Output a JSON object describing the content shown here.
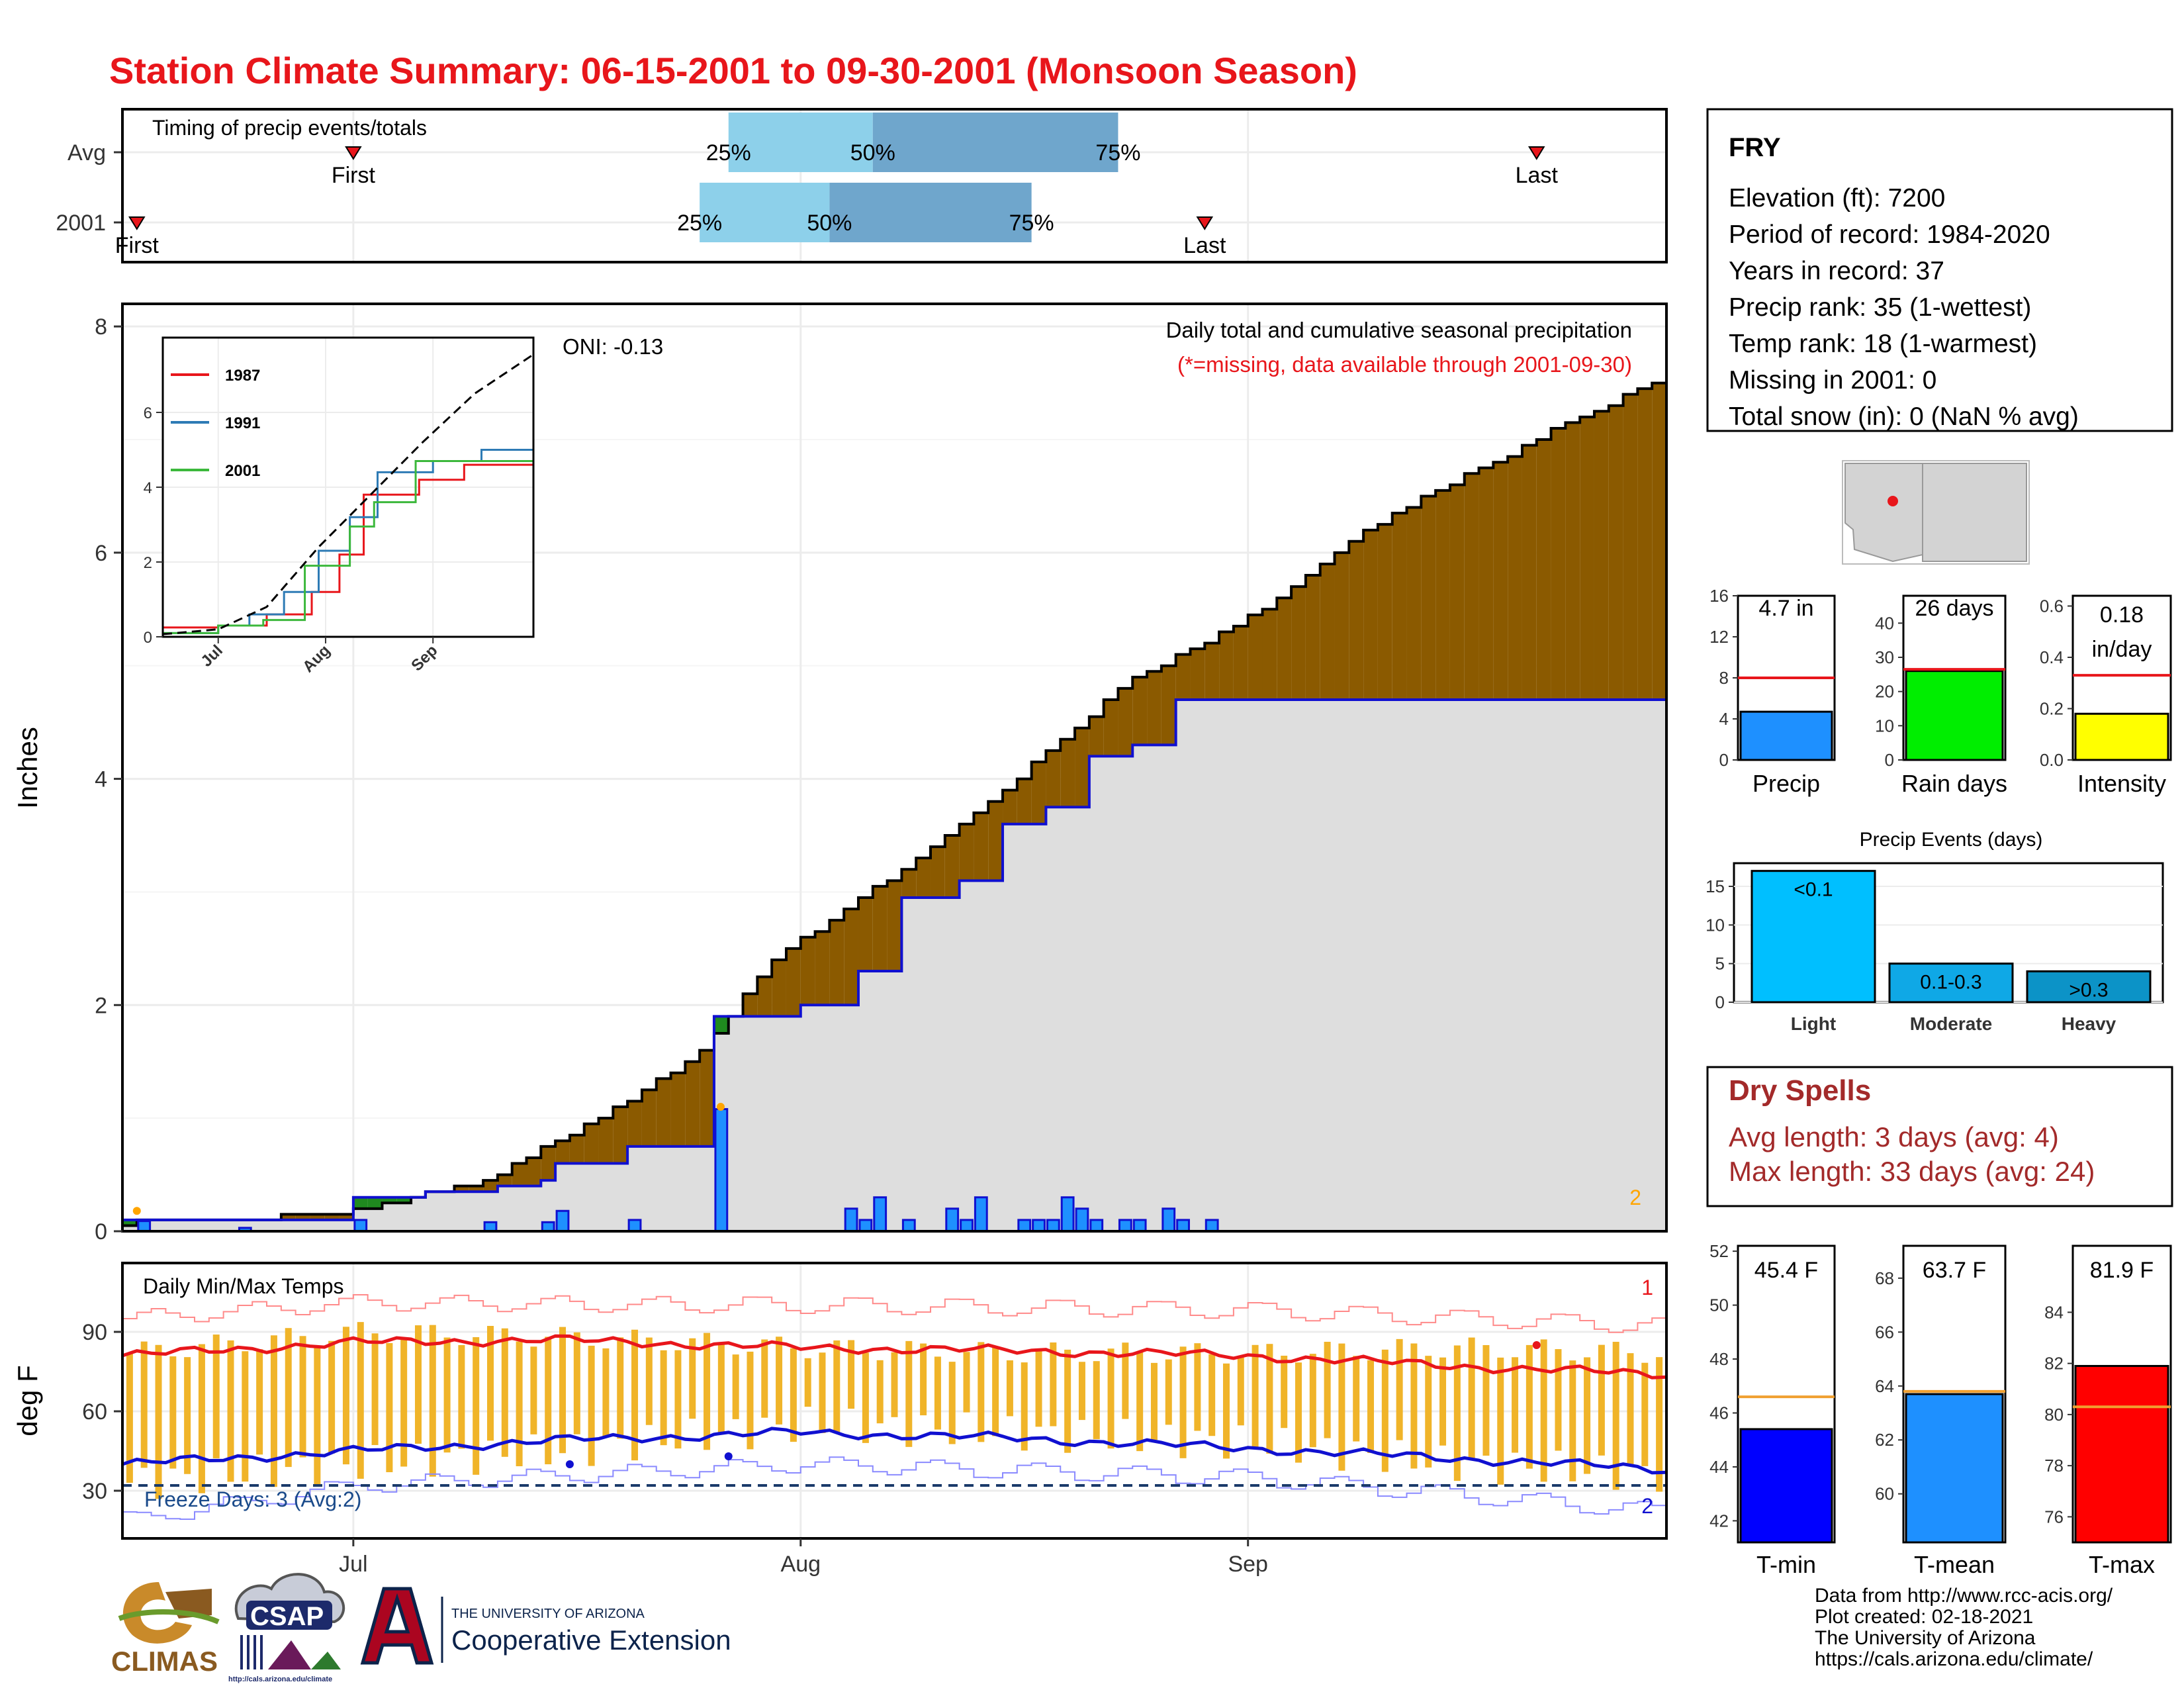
{
  "page_title": "Station Climate Summary: 06-15-2001 to 09-30-2001 (Monsoon Season)",
  "colors": {
    "title_red": "#e8161b",
    "brown": "#8b5a00",
    "light_blue": "#8dd0ea",
    "mid_blue": "#6fa6cc",
    "dry_red": "#a32a2a"
  },
  "timing": {
    "title": "Timing of precip events/totals",
    "rows": [
      {
        "label": "Avg",
        "first_date": "2001-07-01",
        "last_date": "2001-09-21",
        "p25_date": "2001-07-27",
        "p50_date": "2001-08-06",
        "p75_date": "2001-08-23",
        "first_label": "First",
        "last_label": "Last",
        "p25_label": "25%",
        "p50_label": "50%",
        "p75_label": "75%"
      },
      {
        "label": "2001",
        "first_date": "2001-06-16",
        "last_date": "2001-08-29",
        "p25_date": "2001-07-25",
        "p50_date": "2001-08-03",
        "p75_date": "2001-08-17",
        "first_label": "First",
        "last_label": "Last",
        "p25_label": "25%",
        "p50_label": "50%",
        "p75_label": "75%"
      }
    ]
  },
  "precip_chart": {
    "ylabel": "Inches",
    "note_title": "Daily total and cumulative seasonal precipitation",
    "note_missing": "(*=missing, data available through 2001-09-30)",
    "oni": "ONI: -0.13",
    "corner_count": "2",
    "yticks": [
      "0",
      "2",
      "4",
      "6",
      "8"
    ]
  },
  "inset": {
    "yticks": [
      "0",
      "2",
      "4",
      "6"
    ],
    "xticks": [
      "Jul",
      "Aug",
      "Sep"
    ],
    "legend": [
      {
        "name": "1987",
        "color": "#e8161b"
      },
      {
        "name": "1991",
        "color": "#2e7bb5"
      },
      {
        "name": "2001",
        "color": "#3cb83c"
      }
    ]
  },
  "temp_chart": {
    "ylabel": "deg F",
    "title": "Daily Min/Max Temps",
    "freeze_text": "Freeze Days: 3 (Avg:2)",
    "count_top": "1",
    "count_bottom": "2",
    "yticks": [
      "30",
      "60",
      "90"
    ],
    "xticks": [
      "Jul",
      "Aug",
      "Sep"
    ]
  },
  "station": {
    "name": "FRY",
    "lines": [
      "Elevation (ft): 7200",
      "Period of record: 1984-2020",
      "Years in record: 37",
      "Precip rank: 35 (1-wettest)",
      "Temp rank: 18 (1-warmest)",
      "Missing in 2001: 0",
      "Total snow (in): 0 (NaN % avg)"
    ]
  },
  "mini_bars": [
    {
      "label": "Precip",
      "value_text": "4.7 in",
      "yticks": [
        "0",
        "4",
        "8",
        "12",
        "16"
      ],
      "ymax": 16,
      "value": 4.7,
      "avg": 8.0,
      "avg_color": "#e8161b",
      "color": "#1e90ff"
    },
    {
      "label": "Rain days",
      "value_text": "26 days",
      "yticks": [
        "0",
        "10",
        "20",
        "30",
        "40"
      ],
      "ymax": 48,
      "value": 26,
      "avg": 26.5,
      "avg_color": "#e8161b",
      "color": "#00ee00"
    },
    {
      "label": "Intensity",
      "value_text": "0.18 in/day",
      "value_line1": "0.18",
      "value_line2": "in/day",
      "yticks": [
        "0.0",
        "0.2",
        "0.4",
        "0.6"
      ],
      "ymax": 0.64,
      "value": 0.18,
      "avg": 0.33,
      "avg_color": "#e8161b",
      "color": "#ffff00"
    }
  ],
  "precip_events": {
    "title": "Precip Events (days)",
    "yticks": [
      "0",
      "5",
      "10",
      "15"
    ],
    "ymax": 18,
    "bars": [
      {
        "category": "Light",
        "label": "<0.1",
        "value": 17,
        "color": "#00bfff"
      },
      {
        "category": "Moderate",
        "label": "0.1-0.3",
        "value": 5,
        "color": "#0fa8e6"
      },
      {
        "category": "Heavy",
        "label": ">0.3",
        "value": 4,
        "color": "#0c93c7"
      }
    ]
  },
  "dry_spells": {
    "title": "Dry Spells",
    "avg_line": "Avg length: 3 days (avg: 4)",
    "max_line": "Max length: 33 days (avg: 24)"
  },
  "temp_bars": [
    {
      "label": "T-min",
      "value_text": "45.4 F",
      "yticks": [
        "42",
        "44",
        "46",
        "48",
        "50",
        "52"
      ],
      "ymin": 41.2,
      "ymax": 52.2,
      "value": 45.4,
      "avg": 46.6,
      "color": "#0000ff"
    },
    {
      "label": "T-mean",
      "value_text": "63.7 F",
      "yticks": [
        "60",
        "62",
        "64",
        "66",
        "68"
      ],
      "ymin": 58.2,
      "ymax": 69.2,
      "value": 63.7,
      "avg": 63.8,
      "color": "#1e90ff"
    },
    {
      "label": "T-max",
      "value_text": "81.9 F",
      "yticks": [
        "76",
        "78",
        "80",
        "82",
        "84"
      ],
      "ymin": 75.0,
      "ymax": 86.6,
      "value": 81.9,
      "avg": 80.3,
      "color": "#ff0000"
    }
  ],
  "footer": {
    "lines": [
      "Data from http://www.rcc-acis.org/",
      "Plot created: 02-18-2021",
      "The University of Arizona",
      "https://cals.arizona.edu/climate/"
    ],
    "logo1": "CLIMAS",
    "logo2": "CSAP",
    "logo2_sub": "http://cals.arizona.edu/climate",
    "ua_small": "THE UNIVERSITY OF ARIZONA",
    "ua_big": "Cooperative Extension"
  },
  "chart_data": {
    "type": "area",
    "title": "Daily total and cumulative seasonal precipitation",
    "ylabel": "Inches",
    "x_range": [
      "2001-06-15",
      "2001-09-30"
    ],
    "ylim": [
      0,
      8.2
    ],
    "series": [
      {
        "name": "Average cumulative precipitation",
        "points": [
          [
            "2001-06-15",
            0.07
          ],
          [
            "2001-06-30",
            0.15
          ],
          [
            "2001-07-05",
            0.3
          ],
          [
            "2001-07-10",
            0.45
          ],
          [
            "2001-07-15",
            0.8
          ],
          [
            "2001-07-20",
            1.15
          ],
          [
            "2001-07-25",
            1.6
          ],
          [
            "2001-07-30",
            2.4
          ],
          [
            "2001-08-04",
            2.85
          ],
          [
            "2001-08-09",
            3.3
          ],
          [
            "2001-08-14",
            3.8
          ],
          [
            "2001-08-19",
            4.35
          ],
          [
            "2001-08-24",
            4.9
          ],
          [
            "2001-08-29",
            5.2
          ],
          [
            "2001-09-03",
            5.6
          ],
          [
            "2001-09-08",
            6.1
          ],
          [
            "2001-09-13",
            6.5
          ],
          [
            "2001-09-18",
            6.8
          ],
          [
            "2001-09-23",
            7.15
          ],
          [
            "2001-09-30",
            7.55
          ]
        ]
      },
      {
        "name": "2001 cumulative precipitation",
        "points": [
          [
            "2001-06-15",
            0.1
          ],
          [
            "2001-06-30",
            0.1
          ],
          [
            "2001-07-01",
            0.3
          ],
          [
            "2001-07-05",
            0.3
          ],
          [
            "2001-07-06",
            0.35
          ],
          [
            "2001-07-10",
            0.35
          ],
          [
            "2001-07-11",
            0.4
          ],
          [
            "2001-07-14",
            0.45
          ],
          [
            "2001-07-15",
            0.6
          ],
          [
            "2001-07-20",
            0.75
          ],
          [
            "2001-07-25",
            0.75
          ],
          [
            "2001-07-26",
            1.9
          ],
          [
            "2001-07-31",
            1.9
          ],
          [
            "2001-08-01",
            2.0
          ],
          [
            "2001-08-05",
            2.3
          ],
          [
            "2001-08-08",
            2.95
          ],
          [
            "2001-08-12",
            3.1
          ],
          [
            "2001-08-15",
            3.6
          ],
          [
            "2001-08-18",
            3.75
          ],
          [
            "2001-08-21",
            4.2
          ],
          [
            "2001-08-24",
            4.3
          ],
          [
            "2001-08-27",
            4.7
          ],
          [
            "2001-09-30",
            4.7
          ]
        ]
      }
    ],
    "daily_precip": [
      [
        "2001-06-16",
        0.09
      ],
      [
        "2001-06-23",
        0.03
      ],
      [
        "2001-07-01",
        0.1
      ],
      [
        "2001-07-10",
        0.08
      ],
      [
        "2001-07-14",
        0.08
      ],
      [
        "2001-07-15",
        0.18
      ],
      [
        "2001-07-20",
        0.1
      ],
      [
        "2001-07-26",
        1.08
      ],
      [
        "2001-08-04",
        0.2
      ],
      [
        "2001-08-05",
        0.1
      ],
      [
        "2001-08-06",
        0.3
      ],
      [
        "2001-08-08",
        0.1
      ],
      [
        "2001-08-11",
        0.2
      ],
      [
        "2001-08-12",
        0.1
      ],
      [
        "2001-08-13",
        0.3
      ],
      [
        "2001-08-16",
        0.1
      ],
      [
        "2001-08-17",
        0.1
      ],
      [
        "2001-08-18",
        0.1
      ],
      [
        "2001-08-19",
        0.3
      ],
      [
        "2001-08-20",
        0.2
      ],
      [
        "2001-08-21",
        0.1
      ],
      [
        "2001-08-23",
        0.1
      ],
      [
        "2001-08-24",
        0.1
      ],
      [
        "2001-08-26",
        0.2
      ],
      [
        "2001-08-27",
        0.1
      ],
      [
        "2001-08-29",
        0.1
      ]
    ],
    "inset_series": [
      {
        "name": "1987",
        "points": [
          [
            "2001-06-15",
            0.25
          ],
          [
            "2001-07-01",
            0.3
          ],
          [
            "2001-07-15",
            0.6
          ],
          [
            "2001-07-28",
            1.2
          ],
          [
            "2001-08-05",
            2.2
          ],
          [
            "2001-08-12",
            3.8
          ],
          [
            "2001-08-28",
            4.2
          ],
          [
            "2001-09-10",
            4.6
          ],
          [
            "2001-09-30",
            4.8
          ]
        ]
      },
      {
        "name": "1991",
        "points": [
          [
            "2001-06-15",
            0.1
          ],
          [
            "2001-07-01",
            0.3
          ],
          [
            "2001-07-10",
            0.6
          ],
          [
            "2001-07-20",
            1.2
          ],
          [
            "2001-07-30",
            2.3
          ],
          [
            "2001-08-08",
            3.2
          ],
          [
            "2001-08-16",
            4.4
          ],
          [
            "2001-09-01",
            4.7
          ],
          [
            "2001-09-15",
            5.0
          ],
          [
            "2001-09-30",
            5.3
          ]
        ]
      },
      {
        "name": "2001",
        "points": [
          [
            "2001-06-15",
            0.1
          ],
          [
            "2001-07-01",
            0.3
          ],
          [
            "2001-07-14",
            0.45
          ],
          [
            "2001-07-26",
            1.9
          ],
          [
            "2001-08-08",
            2.95
          ],
          [
            "2001-08-15",
            3.6
          ],
          [
            "2001-08-27",
            4.7
          ],
          [
            "2001-09-30",
            4.7
          ]
        ]
      },
      {
        "name": "Average",
        "points": [
          [
            "2001-06-15",
            0.07
          ],
          [
            "2001-07-01",
            0.2
          ],
          [
            "2001-07-15",
            0.8
          ],
          [
            "2001-07-30",
            2.4
          ],
          [
            "2001-08-14",
            3.8
          ],
          [
            "2001-08-29",
            5.2
          ],
          [
            "2001-09-13",
            6.5
          ],
          [
            "2001-09-30",
            7.55
          ]
        ]
      }
    ],
    "temps": {
      "ylim": [
        12,
        116
      ],
      "avg_max": [
        [
          "2001-06-15",
          81
        ],
        [
          "2001-07-01",
          86
        ],
        [
          "2001-07-15",
          87
        ],
        [
          "2001-08-01",
          84
        ],
        [
          "2001-08-15",
          83
        ],
        [
          "2001-09-01",
          81
        ],
        [
          "2001-09-20",
          76
        ],
        [
          "2001-09-30",
          74
        ]
      ],
      "avg_min": [
        [
          "2001-06-15",
          40
        ],
        [
          "2001-07-01",
          45
        ],
        [
          "2001-07-15",
          49
        ],
        [
          "2001-08-01",
          52
        ],
        [
          "2001-08-15",
          50
        ],
        [
          "2001-09-01",
          46
        ],
        [
          "2001-09-20",
          41
        ],
        [
          "2001-09-30",
          38
        ]
      ],
      "record_max_points": [
        [
          "2001-06-15",
          95
        ],
        [
          "2001-07-01",
          101
        ],
        [
          "2001-08-01",
          100
        ],
        [
          "2001-09-01",
          98
        ],
        [
          "2001-09-30",
          92
        ]
      ],
      "record_min_points": [
        [
          "2001-06-15",
          19
        ],
        [
          "2001-07-01",
          32
        ],
        [
          "2001-08-01",
          40
        ],
        [
          "2001-09-01",
          35
        ],
        [
          "2001-09-30",
          22
        ]
      ],
      "freeze_line": 32,
      "daily_range_sample": [
        [
          "2001-06-15",
          33,
          82
        ],
        [
          "2001-07-01",
          40,
          90
        ],
        [
          "2001-07-15",
          45,
          88
        ],
        [
          "2001-08-01",
          55,
          84
        ],
        [
          "2001-08-15",
          52,
          82
        ],
        [
          "2001-09-01",
          48,
          82
        ],
        [
          "2001-09-15",
          40,
          84
        ],
        [
          "2001-09-30",
          36,
          82
        ]
      ]
    }
  }
}
